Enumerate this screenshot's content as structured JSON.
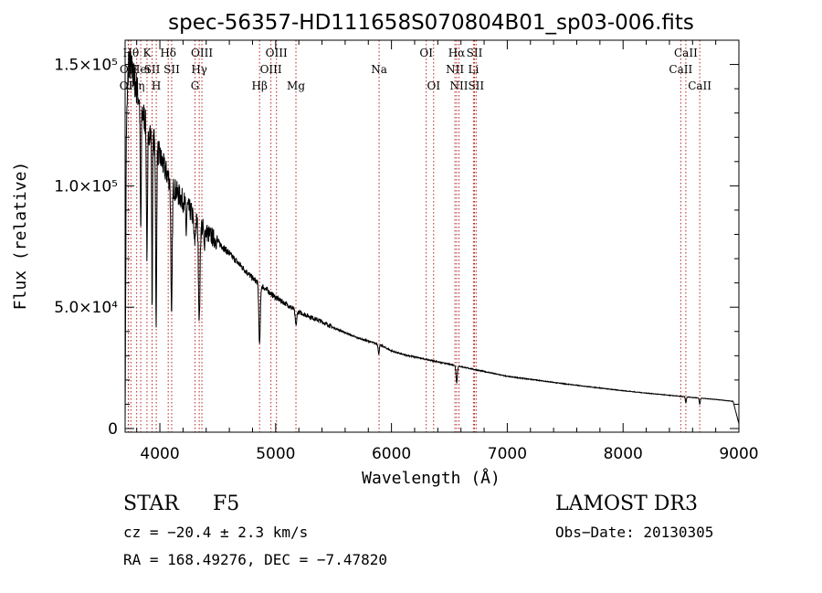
{
  "chart_data": {
    "type": "line",
    "title": "spec-56357-HD111658S070804B01_sp03-006.fits",
    "xlabel": "Wavelength (Å)",
    "ylabel": "Flux (relative)",
    "xlim": [
      3700,
      9000
    ],
    "ylim": [
      -1500,
      160000
    ],
    "x_ticks": [
      4000,
      5000,
      6000,
      7000,
      8000,
      9000
    ],
    "y_ticks": [
      {
        "value": 0,
        "label": "0"
      },
      {
        "value": 50000,
        "label": "5.0×10⁴"
      },
      {
        "value": 100000,
        "label": "1.0×10⁵"
      },
      {
        "value": 150000,
        "label": "1.5×10⁵"
      }
    ],
    "continuum": [
      [
        3700,
        2000
      ],
      [
        3710,
        120000
      ],
      [
        3730,
        152000
      ],
      [
        3760,
        147000
      ],
      [
        3800,
        140000
      ],
      [
        3850,
        130000
      ],
      [
        3900,
        124000
      ],
      [
        3950,
        118000
      ],
      [
        4000,
        112000
      ],
      [
        4050,
        106000
      ],
      [
        4100,
        101000
      ],
      [
        4150,
        97000
      ],
      [
        4200,
        94000
      ],
      [
        4300,
        87000
      ],
      [
        4400,
        81000
      ],
      [
        4500,
        77000
      ],
      [
        4600,
        72000
      ],
      [
        4700,
        67000
      ],
      [
        4800,
        62000
      ],
      [
        4900,
        58000
      ],
      [
        5000,
        54000
      ],
      [
        5100,
        51000
      ],
      [
        5200,
        48000
      ],
      [
        5300,
        46000
      ],
      [
        5400,
        44000
      ],
      [
        5500,
        41500
      ],
      [
        5600,
        39500
      ],
      [
        5700,
        37500
      ],
      [
        5800,
        36000
      ],
      [
        5900,
        34500
      ],
      [
        6000,
        32000
      ],
      [
        6100,
        30500
      ],
      [
        6200,
        29500
      ],
      [
        6300,
        28500
      ],
      [
        6400,
        27500
      ],
      [
        6500,
        26500
      ],
      [
        6600,
        25500
      ],
      [
        6700,
        24500
      ],
      [
        6800,
        23500
      ],
      [
        6900,
        22500
      ],
      [
        7000,
        21500
      ],
      [
        7200,
        20300
      ],
      [
        7400,
        19000
      ],
      [
        7600,
        17800
      ],
      [
        7800,
        16700
      ],
      [
        8000,
        15600
      ],
      [
        8200,
        14600
      ],
      [
        8400,
        13700
      ],
      [
        8600,
        12800
      ],
      [
        8800,
        12000
      ],
      [
        8950,
        11200
      ],
      [
        9000,
        2000
      ]
    ],
    "absorption_features": [
      {
        "center": 3835,
        "depth": 52000,
        "width": 6
      },
      {
        "center": 3889,
        "depth": 55000,
        "width": 7
      },
      {
        "center": 3933,
        "depth": 70000,
        "width": 5
      },
      {
        "center": 3968,
        "depth": 75000,
        "width": 6
      },
      {
        "center": 4101,
        "depth": 55000,
        "width": 8
      },
      {
        "center": 4227,
        "depth": 12000,
        "width": 5
      },
      {
        "center": 4300,
        "depth": 10000,
        "width": 10
      },
      {
        "center": 4340,
        "depth": 40000,
        "width": 9
      },
      {
        "center": 4383,
        "depth": 8000,
        "width": 5
      },
      {
        "center": 4861,
        "depth": 25000,
        "width": 9
      },
      {
        "center": 5175,
        "depth": 6000,
        "width": 10
      },
      {
        "center": 5890,
        "depth": 4000,
        "width": 7
      },
      {
        "center": 6563,
        "depth": 7000,
        "width": 8
      },
      {
        "center": 8542,
        "depth": 2500,
        "width": 6
      },
      {
        "center": 8662,
        "depth": 2500,
        "width": 6
      }
    ],
    "reference_lines": [
      {
        "wavelength": 3727,
        "label": "OII",
        "row": 2
      },
      {
        "wavelength": 3729,
        "label": "OII",
        "row": 1
      },
      {
        "wavelength": 3750,
        "label": "Hθ",
        "row": 0
      },
      {
        "wavelength": 3800,
        "label": "Hη",
        "row": 2
      },
      {
        "wavelength": 3835,
        "label": "Heι",
        "row": 1
      },
      {
        "wavelength": 3889,
        "label": "K",
        "row": 0
      },
      {
        "wavelength": 3933,
        "label": "SII",
        "row": 1
      },
      {
        "wavelength": 3969,
        "label": "H",
        "row": 2
      },
      {
        "wavelength": 4072,
        "label": "Hδ",
        "row": 0
      },
      {
        "wavelength": 4102,
        "label": "SII",
        "row": 1
      },
      {
        "wavelength": 4304,
        "label": "G",
        "row": 2
      },
      {
        "wavelength": 4340,
        "label": "Hγ",
        "row": 1
      },
      {
        "wavelength": 4363,
        "label": "OIII",
        "row": 0
      },
      {
        "wavelength": 4861,
        "label": "Hβ",
        "row": 2
      },
      {
        "wavelength": 4959,
        "label": "OIII",
        "row": 1
      },
      {
        "wavelength": 5007,
        "label": "OIII",
        "row": 0
      },
      {
        "wavelength": 5175,
        "label": "Mg",
        "row": 2
      },
      {
        "wavelength": 5893,
        "label": "Na",
        "row": 1
      },
      {
        "wavelength": 6300,
        "label": "OI",
        "row": 0
      },
      {
        "wavelength": 6364,
        "label": "OI",
        "row": 2
      },
      {
        "wavelength": 6548,
        "label": "NII",
        "row": 1
      },
      {
        "wavelength": 6563,
        "label": "Hα",
        "row": 0
      },
      {
        "wavelength": 6583,
        "label": "NII",
        "row": 2
      },
      {
        "wavelength": 6708,
        "label": "Li",
        "row": 1
      },
      {
        "wavelength": 6717,
        "label": "SII",
        "row": 0
      },
      {
        "wavelength": 6731,
        "label": "SII",
        "row": 2
      },
      {
        "wavelength": 8498,
        "label": "CaII",
        "row": 1
      },
      {
        "wavelength": 8542,
        "label": "CaII",
        "row": 0
      },
      {
        "wavelength": 8662,
        "label": "CaII",
        "row": 2
      }
    ]
  },
  "info": {
    "object_class": "STAR",
    "subclass": "F5",
    "survey": "LAMOST DR3",
    "cz": "cz = −20.4 ± 2.3 km/s",
    "obs_date": "Obs−Date: 20130305",
    "coords": "RA = 168.49276, DEC =  −7.47820"
  },
  "colors": {
    "axis": "#000000",
    "spectrum": "#000000",
    "reference_line": "#b22222",
    "background": "#ffffff"
  }
}
